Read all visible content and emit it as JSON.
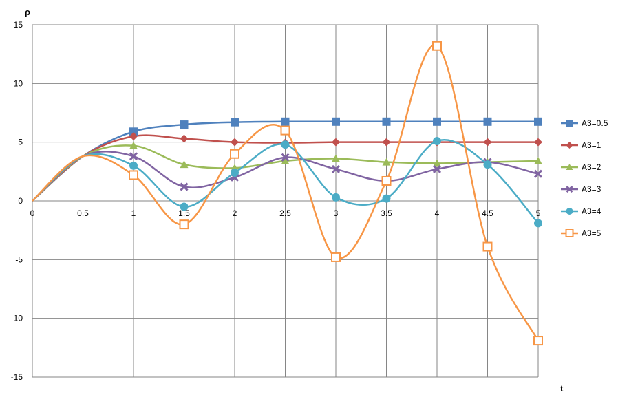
{
  "chart_data": {
    "type": "line",
    "title": "",
    "xlabel": "t",
    "ylabel": "ρ",
    "xlim": [
      0,
      5
    ],
    "ylim": [
      -15,
      15
    ],
    "x_ticks": [
      0,
      0.5,
      1,
      1.5,
      2,
      2.5,
      3,
      3.5,
      4,
      4.5,
      5
    ],
    "x_tick_labels": [
      "0",
      "0.5",
      "1",
      "1.5",
      "2",
      "2.5",
      "3",
      "3.5",
      "4",
      "4.5",
      "5"
    ],
    "y_ticks": [
      15,
      10,
      5,
      0,
      -5,
      -10,
      -15
    ],
    "y_tick_labels": [
      "15",
      "10",
      "5",
      "0",
      "-5",
      "-10",
      "-15"
    ],
    "grid": true,
    "legend_position": "right",
    "x": [
      0,
      0.5,
      1,
      1.5,
      2,
      2.5,
      3,
      3.5,
      4,
      4.5,
      5
    ],
    "series": [
      {
        "name": "A3=0.5",
        "color": "#4F81BD",
        "marker": "square",
        "values": [
          0,
          3.8,
          5.9,
          6.5,
          6.7,
          6.75,
          6.75,
          6.75,
          6.75,
          6.75,
          6.75
        ]
      },
      {
        "name": "A3=1",
        "color": "#C0504D",
        "marker": "diamond",
        "values": [
          0,
          3.8,
          5.5,
          5.3,
          5.0,
          4.95,
          5.0,
          5.0,
          5.0,
          5.0,
          5.0
        ]
      },
      {
        "name": "A3=2",
        "color": "#9BBB59",
        "marker": "triangle",
        "values": [
          0,
          3.8,
          4.7,
          3.1,
          2.8,
          3.4,
          3.6,
          3.3,
          3.2,
          3.3,
          3.4
        ]
      },
      {
        "name": "A3=3",
        "color": "#8064A2",
        "marker": "x",
        "values": [
          0,
          3.8,
          3.8,
          1.2,
          2.0,
          3.7,
          2.7,
          1.7,
          2.7,
          3.3,
          2.3
        ]
      },
      {
        "name": "A3=4",
        "color": "#4BACC6",
        "marker": "circle",
        "values": [
          0,
          3.8,
          3.0,
          -0.5,
          2.4,
          4.8,
          0.3,
          0.2,
          5.1,
          3.1,
          -1.9
        ]
      },
      {
        "name": "A3=5",
        "color": "#F79646",
        "marker": "open-square",
        "values": [
          0,
          3.8,
          2.2,
          -2.0,
          4.0,
          6.0,
          -4.8,
          1.7,
          13.2,
          -3.9,
          -11.9
        ]
      }
    ]
  }
}
